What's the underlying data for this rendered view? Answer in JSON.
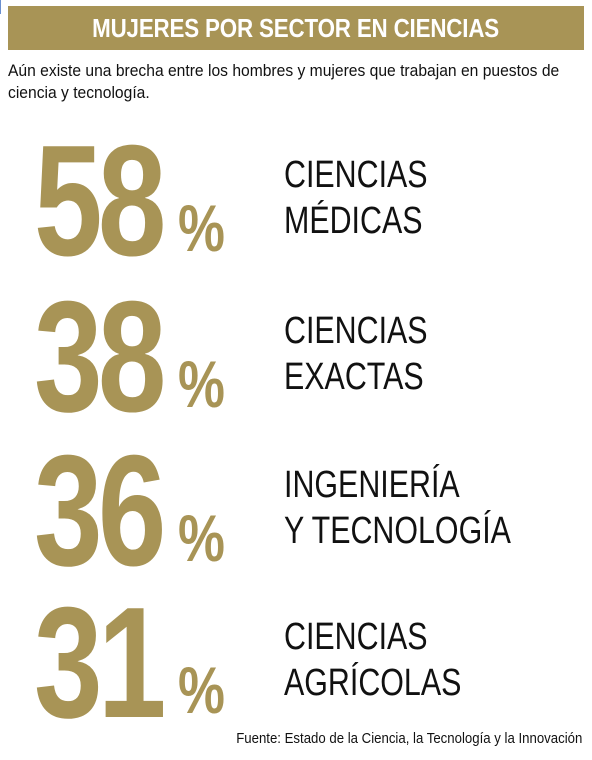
{
  "title": "MUJERES POR SECTOR EN CIENCIAS",
  "subtitle": "Aún existe una brecha entre los hombres y mujeres que trabajan en puestos de ciencia y tecnología.",
  "source": "Fuente: Estado de la Ciencia, la Tecnología y la Innovación",
  "colors": {
    "accent": "#a89456",
    "text": "#111111",
    "title_text": "#ffffff"
  },
  "chart_data": {
    "type": "table",
    "title": "MUJERES POR SECTOR EN CIENCIAS",
    "unit": "%",
    "categories": [
      [
        "CIENCIAS",
        "MÉDICAS"
      ],
      [
        "CIENCIAS",
        "EXACTAS"
      ],
      [
        "INGENIERÍA",
        "Y TECNOLOGÍA"
      ],
      [
        "CIENCIAS",
        "AGRÍCOLAS"
      ]
    ],
    "values": [
      58,
      38,
      36,
      31
    ],
    "value_labels": [
      "58",
      "38",
      "36",
      "31"
    ],
    "percent_sign": "%"
  }
}
